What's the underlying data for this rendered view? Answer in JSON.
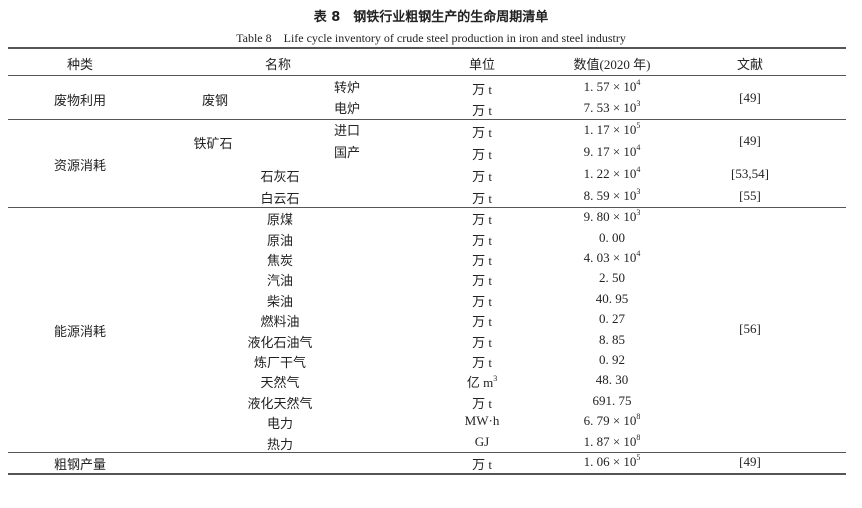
{
  "title": "表 8　钢铁行业粗钢生产的生命周期清单",
  "subtitle": "Table 8　Life cycle inventory of crude steel production in iron and steel industry",
  "headers": {
    "kind": "种类",
    "name": "名称",
    "unit": "单位",
    "value": "数值(2020 年)",
    "ref": "文献"
  },
  "groups": [
    {
      "category": "废物利用",
      "rows": [
        {
          "main": "废钢",
          "sub": "转炉",
          "unit": "万 t",
          "value": "1. 57 × 10",
          "exp": "4"
        },
        {
          "sub": "电炉",
          "unit": "万 t",
          "value": "7. 53 × 10",
          "exp": "3"
        }
      ],
      "refs": [
        {
          "text": "[49]",
          "from": 0,
          "to": 1
        }
      ],
      "mains": [
        {
          "text": "废钢",
          "from": 0,
          "to": 1
        }
      ]
    },
    {
      "category": "资源消耗",
      "rows": [
        {
          "sub": "进口",
          "unit": "万 t",
          "value": "1. 17 × 10",
          "exp": "5"
        },
        {
          "sub": "国产",
          "unit": "万 t",
          "value": "9. 17 × 10",
          "exp": "4"
        },
        {
          "name": "石灰石",
          "unit": "万 t",
          "value": "1. 22 × 10",
          "exp": "4"
        },
        {
          "name": "白云石",
          "unit": "万 t",
          "value": "8. 59 × 10",
          "exp": "3"
        }
      ],
      "refs": [
        {
          "text": "[49]",
          "from": 0,
          "to": 1
        },
        {
          "text": "[53,54]",
          "from": 2,
          "to": 2
        },
        {
          "text": "[55]",
          "from": 3,
          "to": 3
        }
      ],
      "mains": [
        {
          "text": "铁矿石",
          "from": 0,
          "to": 1
        }
      ]
    },
    {
      "category": "能源消耗",
      "rows": [
        {
          "name": "原煤",
          "unit": "万 t",
          "value": "9. 80 × 10",
          "exp": "3"
        },
        {
          "name": "原油",
          "unit": "万 t",
          "value": "0. 00"
        },
        {
          "name": "焦炭",
          "unit": "万 t",
          "value": "4. 03 × 10",
          "exp": "4"
        },
        {
          "name": "汽油",
          "unit": "万 t",
          "value": "2. 50"
        },
        {
          "name": "柴油",
          "unit": "万 t",
          "value": "40. 95"
        },
        {
          "name": "燃料油",
          "unit": "万 t",
          "value": "0. 27"
        },
        {
          "name": "液化石油气",
          "unit": "万 t",
          "value": "8. 85"
        },
        {
          "name": "炼厂干气",
          "unit": "万 t",
          "value": "0. 92"
        },
        {
          "name": "天然气",
          "unit": "亿 m",
          "unit_exp": "3",
          "value": "48. 30"
        },
        {
          "name": "液化天然气",
          "unit": "万 t",
          "value": "691. 75"
        },
        {
          "name": "电力",
          "unit": "MW·h",
          "value": "6. 79 × 10",
          "exp": "8"
        },
        {
          "name": "热力",
          "unit": "GJ",
          "value": "1. 87 × 10",
          "exp": "8"
        }
      ],
      "refs": [
        {
          "text": "[56]",
          "from": 0,
          "to": 11
        }
      ],
      "mains": []
    },
    {
      "category": "粗钢产量",
      "rows": [
        {
          "unit": "万 t",
          "value": "1. 06 × 10",
          "exp": "5"
        }
      ],
      "refs": [
        {
          "text": "[49]",
          "from": 0,
          "to": 0
        }
      ],
      "mains": []
    }
  ]
}
